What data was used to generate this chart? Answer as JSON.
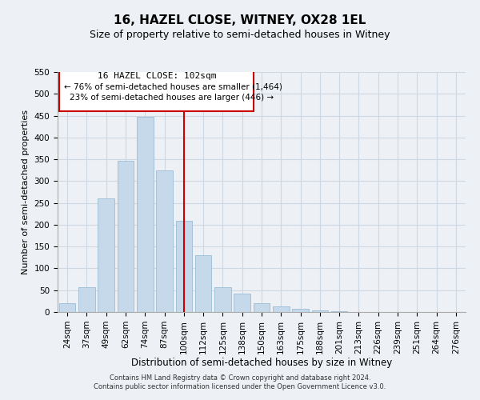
{
  "title": "16, HAZEL CLOSE, WITNEY, OX28 1EL",
  "subtitle": "Size of property relative to semi-detached houses in Witney",
  "xlabel": "Distribution of semi-detached houses by size in Witney",
  "ylabel": "Number of semi-detached properties",
  "bar_labels": [
    "24sqm",
    "37sqm",
    "49sqm",
    "62sqm",
    "74sqm",
    "87sqm",
    "100sqm",
    "112sqm",
    "125sqm",
    "138sqm",
    "150sqm",
    "163sqm",
    "175sqm",
    "188sqm",
    "201sqm",
    "213sqm",
    "226sqm",
    "239sqm",
    "251sqm",
    "264sqm",
    "276sqm"
  ],
  "bar_values": [
    20,
    57,
    260,
    347,
    447,
    325,
    209,
    130,
    56,
    43,
    20,
    13,
    7,
    3,
    1,
    0,
    0,
    0,
    0,
    0,
    0
  ],
  "bar_color": "#c5d9ea",
  "bar_edge_color": "#9bbdd4",
  "vline_x_index": 6,
  "vline_color": "#cc0000",
  "annotation_title": "16 HAZEL CLOSE: 102sqm",
  "annotation_line1": "← 76% of semi-detached houses are smaller (1,464)",
  "annotation_line2": "23% of semi-detached houses are larger (446) →",
  "annotation_box_color": "#ffffff",
  "annotation_box_edge": "#cc0000",
  "ylim": [
    0,
    550
  ],
  "yticks": [
    0,
    50,
    100,
    150,
    200,
    250,
    300,
    350,
    400,
    450,
    500,
    550
  ],
  "footer_line1": "Contains HM Land Registry data © Crown copyright and database right 2024.",
  "footer_line2": "Contains public sector information licensed under the Open Government Licence v3.0.",
  "grid_color": "#cdd8e3",
  "background_color": "#edf1f5",
  "title_fontsize": 11,
  "subtitle_fontsize": 9,
  "xlabel_fontsize": 8.5,
  "ylabel_fontsize": 8,
  "tick_fontsize": 7.5,
  "footer_fontsize": 6
}
